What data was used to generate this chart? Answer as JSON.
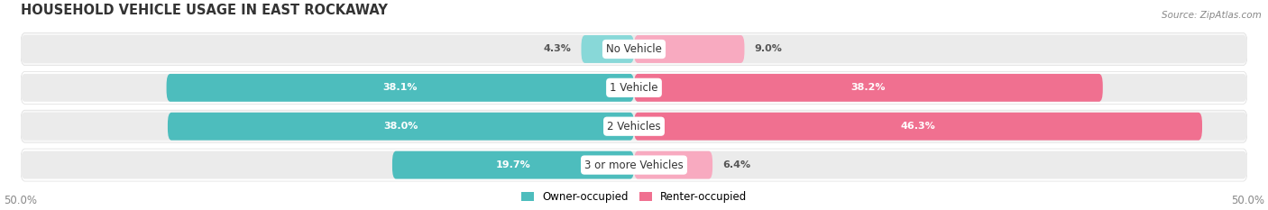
{
  "title": "HOUSEHOLD VEHICLE USAGE IN EAST ROCKAWAY",
  "source": "Source: ZipAtlas.com",
  "categories": [
    "No Vehicle",
    "1 Vehicle",
    "2 Vehicles",
    "3 or more Vehicles"
  ],
  "owner_values": [
    4.3,
    38.1,
    38.0,
    19.7
  ],
  "renter_values": [
    9.0,
    38.2,
    46.3,
    6.4
  ],
  "owner_color": "#4dbdbd",
  "renter_color": "#f07090",
  "owner_color_light": "#88d8d8",
  "renter_color_light": "#f8aac0",
  "bar_bg_color": "#ebebeb",
  "bar_height": 0.72,
  "row_bg_even": "#f7f7f7",
  "row_bg_odd": "#ffffff",
  "xlim": [
    -50,
    50
  ],
  "xticks": [
    -50,
    50
  ],
  "xticklabels": [
    "50.0%",
    "50.0%"
  ],
  "background_color": "#ffffff",
  "title_fontsize": 10.5,
  "label_fontsize": 8.5,
  "value_fontsize": 8.0,
  "tick_fontsize": 8.5,
  "source_fontsize": 7.5,
  "legend_fontsize": 8.5
}
